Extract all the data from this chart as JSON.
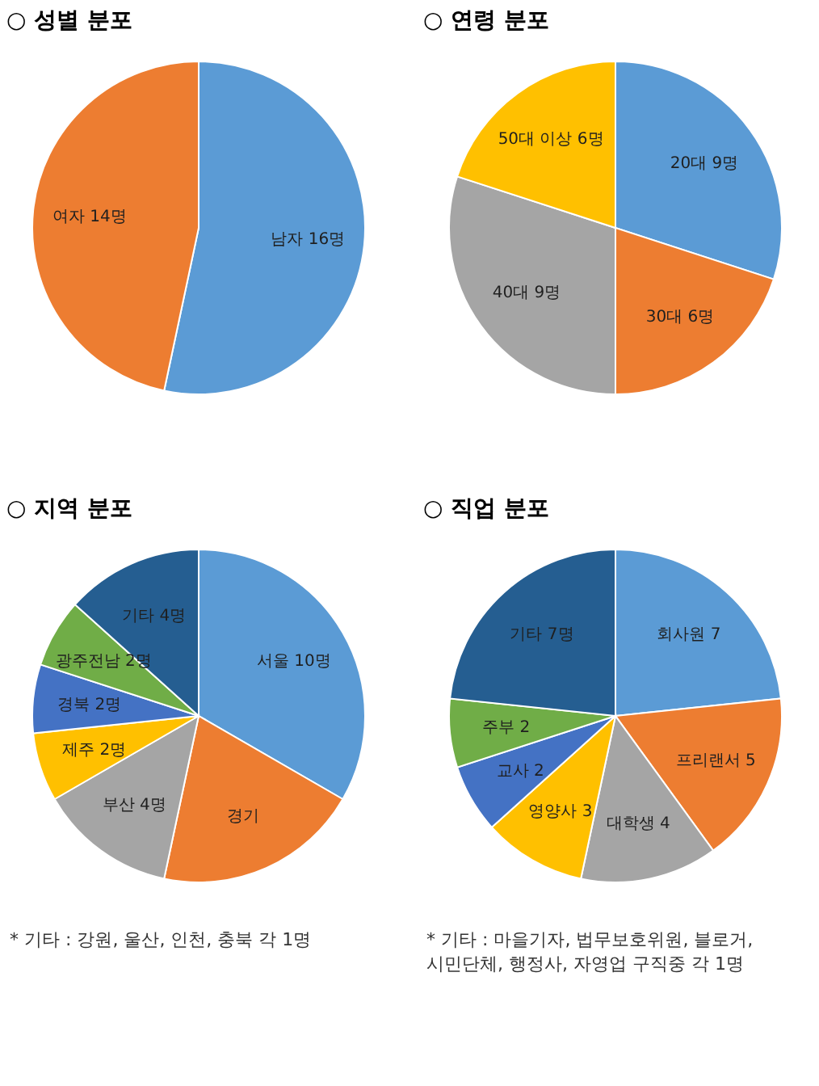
{
  "chart_data": [
    {
      "type": "pie",
      "title": "○ 성별 분포",
      "categories": [
        "남자 16명",
        "여자 14명"
      ],
      "values": [
        16,
        14
      ],
      "colors": [
        "#5b9bd5",
        "#ed7d31"
      ]
    },
    {
      "type": "pie",
      "title": "○ 연령 분포",
      "categories": [
        "20대 9명",
        "30대 6명",
        "40대 9명",
        "50대 이상 6명"
      ],
      "values": [
        9,
        6,
        9,
        6
      ],
      "colors": [
        "#5b9bd5",
        "#ed7d31",
        "#a5a5a5",
        "#ffc000"
      ]
    },
    {
      "type": "pie",
      "title": "○ 지역 분포",
      "categories": [
        "서울 10명",
        "경기",
        "부산 4명",
        "제주 2명",
        "경북 2명",
        "광주전남 2명",
        "기타 4명"
      ],
      "values": [
        10,
        6,
        4,
        2,
        2,
        2,
        4
      ],
      "colors": [
        "#5b9bd5",
        "#ed7d31",
        "#a5a5a5",
        "#ffc000",
        "#4472c4",
        "#70ad47",
        "#255e91"
      ],
      "annotations": [
        "* 기타 : 강원, 울산, 인천, 충북 각 1명"
      ]
    },
    {
      "type": "pie",
      "title": "○ 직업 분포",
      "categories": [
        "회사원 7",
        "프리랜서 5",
        "대학생 4",
        "영양사 3",
        "교사 2",
        "주부 2",
        "기타 7명"
      ],
      "values": [
        7,
        5,
        4,
        3,
        2,
        2,
        7
      ],
      "colors": [
        "#5b9bd5",
        "#ed7d31",
        "#a5a5a5",
        "#ffc000",
        "#4472c4",
        "#70ad47",
        "#255e91"
      ],
      "annotations": [
        "* 기타 : 마을기자, 법무보호위원, 블로거, 시민단체, 행정사, 자영업 구직중 각 1명"
      ]
    }
  ]
}
